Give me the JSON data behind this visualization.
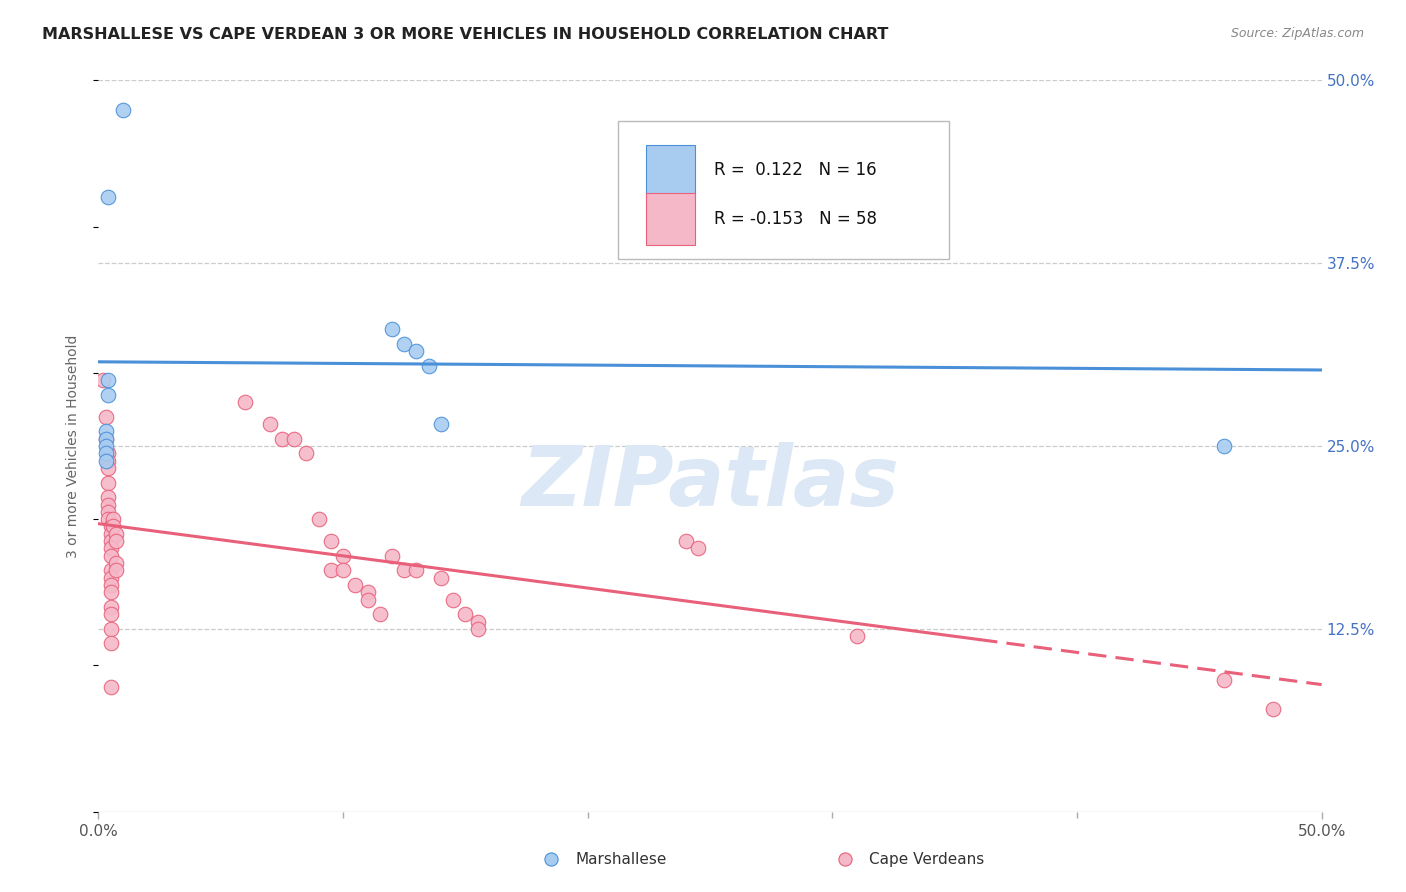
{
  "title": "MARSHALLESE VS CAPE VERDEAN 3 OR MORE VEHICLES IN HOUSEHOLD CORRELATION CHART",
  "source": "Source: ZipAtlas.com",
  "ylabel": "3 or more Vehicles in Household",
  "xlim": [
    0.0,
    0.5
  ],
  "ylim": [
    0.0,
    0.5
  ],
  "legend_labels": [
    "Marshallese",
    "Cape Verdeans"
  ],
  "blue_R": 0.122,
  "blue_N": 16,
  "pink_R": -0.153,
  "pink_N": 58,
  "blue_color": "#A8CCF0",
  "pink_color": "#F5B8C8",
  "blue_line_color": "#4A90D9",
  "pink_line_color": "#E8607A",
  "watermark_color": "#DCE8F5",
  "blue_points": [
    [
      0.01,
      0.48
    ],
    [
      0.004,
      0.42
    ],
    [
      0.004,
      0.295
    ],
    [
      0.004,
      0.285
    ],
    [
      0.003,
      0.26
    ],
    [
      0.003,
      0.255
    ],
    [
      0.003,
      0.25
    ],
    [
      0.003,
      0.245
    ],
    [
      0.003,
      0.24
    ],
    [
      0.12,
      0.33
    ],
    [
      0.125,
      0.32
    ],
    [
      0.13,
      0.315
    ],
    [
      0.135,
      0.305
    ],
    [
      0.14,
      0.265
    ],
    [
      0.27,
      0.39
    ],
    [
      0.46,
      0.25
    ]
  ],
  "pink_points": [
    [
      0.002,
      0.295
    ],
    [
      0.003,
      0.27
    ],
    [
      0.003,
      0.255
    ],
    [
      0.004,
      0.245
    ],
    [
      0.004,
      0.24
    ],
    [
      0.004,
      0.235
    ],
    [
      0.004,
      0.225
    ],
    [
      0.004,
      0.215
    ],
    [
      0.004,
      0.21
    ],
    [
      0.004,
      0.205
    ],
    [
      0.004,
      0.2
    ],
    [
      0.005,
      0.195
    ],
    [
      0.005,
      0.19
    ],
    [
      0.005,
      0.185
    ],
    [
      0.005,
      0.18
    ],
    [
      0.005,
      0.175
    ],
    [
      0.005,
      0.165
    ],
    [
      0.005,
      0.16
    ],
    [
      0.005,
      0.155
    ],
    [
      0.005,
      0.15
    ],
    [
      0.005,
      0.14
    ],
    [
      0.005,
      0.135
    ],
    [
      0.005,
      0.125
    ],
    [
      0.005,
      0.115
    ],
    [
      0.005,
      0.085
    ],
    [
      0.006,
      0.2
    ],
    [
      0.006,
      0.195
    ],
    [
      0.007,
      0.19
    ],
    [
      0.007,
      0.185
    ],
    [
      0.007,
      0.17
    ],
    [
      0.007,
      0.165
    ],
    [
      0.06,
      0.28
    ],
    [
      0.07,
      0.265
    ],
    [
      0.075,
      0.255
    ],
    [
      0.08,
      0.255
    ],
    [
      0.085,
      0.245
    ],
    [
      0.09,
      0.2
    ],
    [
      0.095,
      0.185
    ],
    [
      0.095,
      0.165
    ],
    [
      0.1,
      0.175
    ],
    [
      0.1,
      0.165
    ],
    [
      0.105,
      0.155
    ],
    [
      0.11,
      0.15
    ],
    [
      0.11,
      0.145
    ],
    [
      0.115,
      0.135
    ],
    [
      0.12,
      0.175
    ],
    [
      0.125,
      0.165
    ],
    [
      0.13,
      0.165
    ],
    [
      0.14,
      0.16
    ],
    [
      0.145,
      0.145
    ],
    [
      0.15,
      0.135
    ],
    [
      0.155,
      0.13
    ],
    [
      0.155,
      0.125
    ],
    [
      0.24,
      0.185
    ],
    [
      0.245,
      0.18
    ],
    [
      0.31,
      0.12
    ],
    [
      0.46,
      0.09
    ],
    [
      0.48,
      0.07
    ]
  ]
}
